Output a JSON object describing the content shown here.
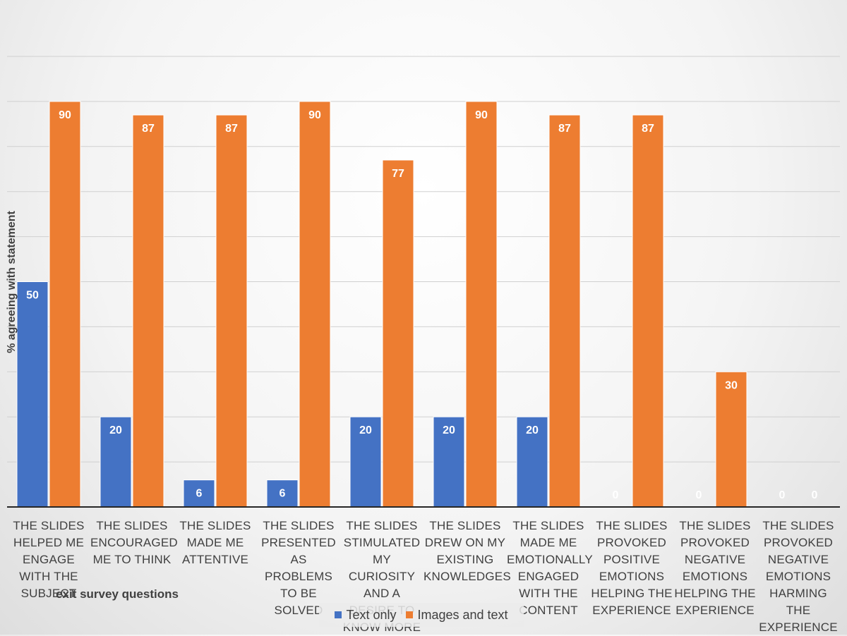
{
  "chart_data": {
    "type": "bar",
    "categories": [
      "The slides helped me engage with the subject",
      "The slides encouraged me to think",
      "The slides made me attentive",
      "The slides presented as problems to be solved",
      "The slides stimulated my curiosity and a desire to know more",
      "The slides drew on my existing knowledges",
      "The slides made me emotionally engaged with the content",
      "The slides provoked positive emotions helping the experience",
      "The slides provoked negative emotions helping the experience",
      "The slides provoked negative emotions harming the experience"
    ],
    "series": [
      {
        "name": "Text only",
        "color": "#4472C4",
        "values": [
          50,
          20,
          6,
          6,
          20,
          20,
          20,
          0,
          0,
          0
        ]
      },
      {
        "name": "Images and text",
        "color": "#ED7D31",
        "values": [
          90,
          87,
          87,
          90,
          77,
          90,
          87,
          87,
          30,
          0
        ]
      }
    ],
    "xlabel": "exit survey questions",
    "ylabel": "% agreeing with statement",
    "ylim": [
      0,
      100
    ],
    "grid": true,
    "legend_position": "bottom"
  }
}
